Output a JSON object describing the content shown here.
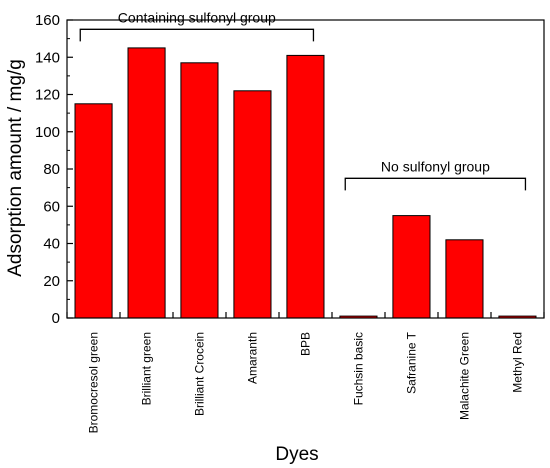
{
  "chart_data": {
    "type": "bar",
    "xlabel": "Dyes",
    "ylabel": "Adsorption amount / mg/g",
    "ylim": [
      0,
      160
    ],
    "yticks": [
      0,
      20,
      40,
      60,
      80,
      100,
      120,
      140,
      160
    ],
    "grid": false,
    "bar_color": "#ff0000",
    "categories": [
      "Bromocresol green",
      "Brilliant green",
      "Brilliant Crocein",
      "Amaranth",
      "BPB",
      "Fuchsin basic",
      "Safranine T",
      "Malachite Green",
      "Methyl Red"
    ],
    "values": [
      115,
      145,
      137,
      122,
      141,
      1,
      55,
      42,
      1
    ],
    "groups": [
      {
        "label": "Containing sulfonyl group",
        "start": 0,
        "end": 4,
        "level": 155
      },
      {
        "label": "No sulfonyl group",
        "start": 5,
        "end": 8,
        "level": 75
      }
    ]
  }
}
